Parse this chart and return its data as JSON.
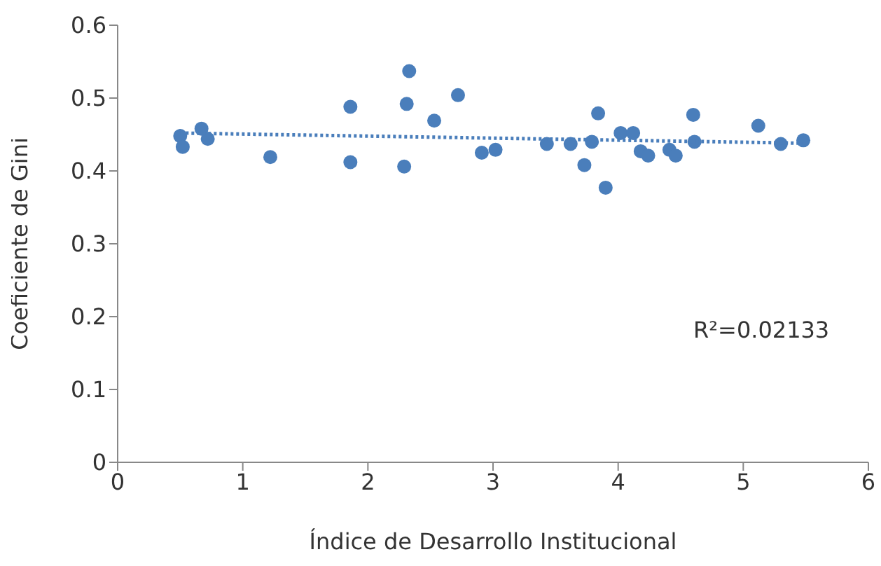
{
  "chart_data": {
    "type": "scatter",
    "xlabel": "Índice de Desarrollo Institucional",
    "ylabel": "Coeficiente de Gini",
    "xlim": [
      0,
      6
    ],
    "xticks": [
      0,
      1,
      2,
      3,
      4,
      5,
      6
    ],
    "ylim": [
      0,
      0.6
    ],
    "yticks": [
      0,
      0.1,
      0.2,
      0.3,
      0.4,
      0.5,
      0.6
    ],
    "grid": false,
    "legend": false,
    "marker": "circle",
    "annotations": [
      "R²=0.02133"
    ],
    "series": [
      {
        "color": "#4a7ebb",
        "x": [
          0.5,
          0.52,
          0.67,
          0.72,
          1.22,
          1.86,
          1.86,
          2.29,
          2.31,
          2.33,
          2.53,
          2.72,
          2.91,
          3.02,
          3.43,
          3.62,
          3.73,
          3.79,
          3.84,
          3.9,
          4.02,
          4.12,
          4.18,
          4.24,
          4.41,
          4.46,
          4.6,
          4.61,
          5.12,
          5.3,
          5.48
        ],
        "values": [
          0.448,
          0.433,
          0.458,
          0.444,
          0.419,
          0.488,
          0.412,
          0.406,
          0.492,
          0.537,
          0.469,
          0.504,
          0.425,
          0.429,
          0.437,
          0.437,
          0.408,
          0.44,
          0.479,
          0.377,
          0.452,
          0.452,
          0.427,
          0.421,
          0.429,
          0.421,
          0.477,
          0.44,
          0.462,
          0.437,
          0.442
        ]
      },
      {
        "type": "line",
        "color": "#4a7ebb",
        "marker": "none",
        "line_style": "dotted",
        "x": [
          0.5,
          5.5
        ],
        "values": [
          0.452,
          0.438
        ]
      }
    ]
  }
}
